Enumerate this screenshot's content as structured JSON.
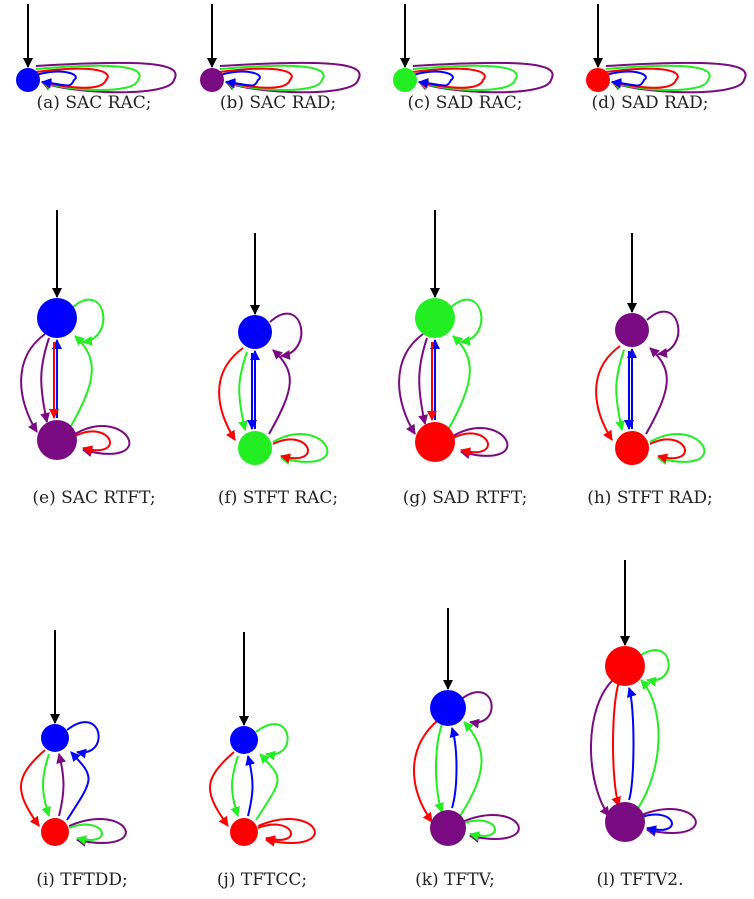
{
  "colors": {
    "black": "#000000",
    "blue": "#0000ff",
    "purple": "#7a0a82",
    "green": "#22ee22",
    "red": "#ff0000"
  },
  "diagrams": [
    {
      "key": "a",
      "caption": "(a) SAC RAC;",
      "states": [
        "blue"
      ],
      "loops": [
        "blue",
        "red",
        "green",
        "purple"
      ]
    },
    {
      "key": "b",
      "caption": "(b) SAC RAD;",
      "states": [
        "purple"
      ],
      "loops": [
        "blue",
        "red",
        "green",
        "purple"
      ]
    },
    {
      "key": "c",
      "caption": "(c) SAD RAC;",
      "states": [
        "green"
      ],
      "loops": [
        "blue",
        "red",
        "green",
        "purple"
      ]
    },
    {
      "key": "d",
      "caption": "(d) SAD RAD;",
      "states": [
        "red"
      ],
      "loops": [
        "blue",
        "red",
        "green",
        "purple"
      ]
    },
    {
      "key": "e",
      "caption": "(e) SAC RTFT;",
      "states": [
        "blue",
        "purple"
      ]
    },
    {
      "key": "f",
      "caption": "(f) STFT RAC;",
      "states": [
        "blue",
        "green"
      ]
    },
    {
      "key": "g",
      "caption": "(g) SAD RTFT;",
      "states": [
        "green",
        "red"
      ]
    },
    {
      "key": "h",
      "caption": "(h) STFT RAD;",
      "states": [
        "purple",
        "red"
      ]
    },
    {
      "key": "i",
      "caption": "(i) TFTDD;",
      "states": [
        "blue",
        "red"
      ]
    },
    {
      "key": "j",
      "caption": "(j) TFTCC;",
      "states": [
        "blue",
        "red"
      ]
    },
    {
      "key": "k",
      "caption": "(k) TFTV;",
      "states": [
        "blue",
        "purple"
      ]
    },
    {
      "key": "l",
      "caption": "(l) TFTV2.",
      "states": [
        "red",
        "purple"
      ]
    }
  ]
}
